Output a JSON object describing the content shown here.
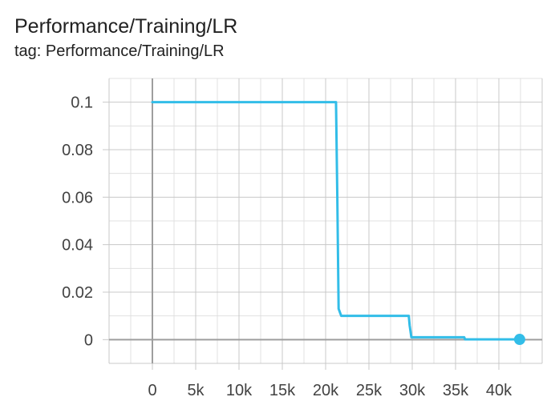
{
  "card": {
    "title": "Performance/Training/LR",
    "subtitle": "tag: Performance/Training/LR"
  },
  "chart_data": {
    "type": "line",
    "title": "Performance/Training/LR",
    "subtitle": "tag: Performance/Training/LR",
    "xlabel": "",
    "ylabel": "",
    "xlim": [
      -5000,
      45000
    ],
    "ylim": [
      -0.01,
      0.11
    ],
    "grid": true,
    "x_ticks": [
      0,
      5000,
      10000,
      15000,
      20000,
      25000,
      30000,
      35000,
      40000
    ],
    "x_tick_labels": [
      "0",
      "5k",
      "10k",
      "15k",
      "20k",
      "25k",
      "30k",
      "35k",
      "40k"
    ],
    "y_ticks": [
      0,
      0.02,
      0.04,
      0.06,
      0.08,
      0.1
    ],
    "y_tick_labels": [
      "0",
      "0.02",
      "0.04",
      "0.06",
      "0.08",
      "0.1"
    ],
    "series": [
      {
        "color": "#32bde8",
        "x": [
          0,
          21200,
          21350,
          21500,
          21800,
          29600,
          29700,
          29900,
          36000,
          36100,
          42400
        ],
        "y": [
          0.1,
          0.1,
          0.06,
          0.013,
          0.01,
          0.01,
          0.006,
          0.001,
          0.001,
          0.0001,
          0.0001
        ]
      }
    ],
    "last_point": {
      "x": 42400,
      "y": 0.0001
    }
  }
}
